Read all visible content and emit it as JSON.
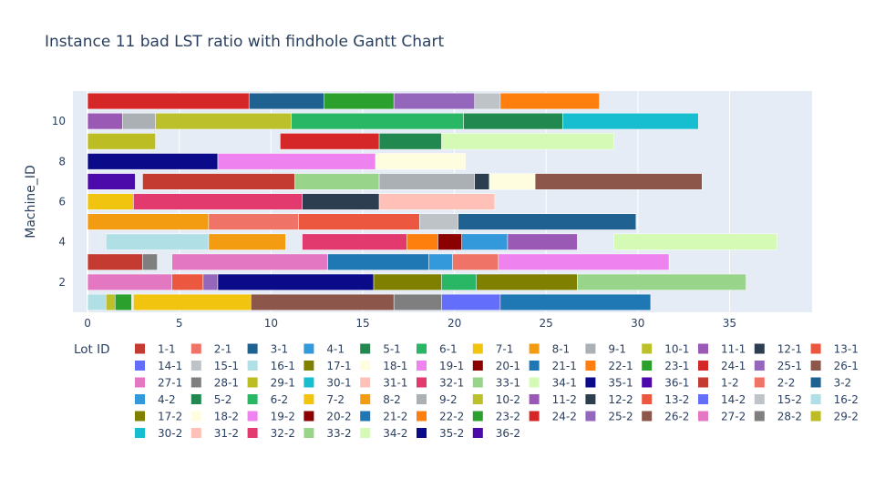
{
  "chart_data": {
    "type": "bar",
    "orientation": "horizontal",
    "title": "Instance 11 bad LST ratio with findhole Gantt Chart",
    "xlabel": "",
    "ylabel": "Machine_ID",
    "legend_title": "Lot ID",
    "legend_placement": "bottom",
    "xlim": [
      -0.8,
      39.5
    ],
    "ylim": [
      0.5,
      11.5
    ],
    "x_ticks": [
      0,
      5,
      10,
      15,
      20,
      25,
      30,
      35
    ],
    "y_ticks": [
      2,
      4,
      6,
      8,
      10
    ],
    "grid": true,
    "lots": [
      {
        "id": "1-1",
        "color": "#c43c31"
      },
      {
        "id": "2-1",
        "color": "#ef7366"
      },
      {
        "id": "3-1",
        "color": "#1f6190"
      },
      {
        "id": "4-1",
        "color": "#3399db"
      },
      {
        "id": "5-1",
        "color": "#218850"
      },
      {
        "id": "6-1",
        "color": "#2ab765"
      },
      {
        "id": "7-1",
        "color": "#f1c40f"
      },
      {
        "id": "8-1",
        "color": "#f39c12"
      },
      {
        "id": "9-1",
        "color": "#aab0b4"
      },
      {
        "id": "10-1",
        "color": "#bcc02b"
      },
      {
        "id": "11-1",
        "color": "#9b59b6"
      },
      {
        "id": "12-1",
        "color": "#2c3e50"
      },
      {
        "id": "13-1",
        "color": "#ec573f"
      },
      {
        "id": "14-1",
        "color": "#636efa"
      },
      {
        "id": "15-1",
        "color": "#bdc3c7"
      },
      {
        "id": "16-1",
        "color": "#b0e0e6"
      },
      {
        "id": "17-1",
        "color": "#808000"
      },
      {
        "id": "18-1",
        "color": "#fffde0"
      },
      {
        "id": "19-1",
        "color": "#ee82ee"
      },
      {
        "id": "20-1",
        "color": "#8b0000"
      },
      {
        "id": "21-1",
        "color": "#1f77b4"
      },
      {
        "id": "22-1",
        "color": "#ff7f0e"
      },
      {
        "id": "23-1",
        "color": "#2ca02c"
      },
      {
        "id": "24-1",
        "color": "#d62728"
      },
      {
        "id": "25-1",
        "color": "#9467bd"
      },
      {
        "id": "26-1",
        "color": "#8c564b"
      },
      {
        "id": "27-1",
        "color": "#e377c2"
      },
      {
        "id": "28-1",
        "color": "#7f7f7f"
      },
      {
        "id": "29-1",
        "color": "#bcbd22"
      },
      {
        "id": "30-1",
        "color": "#17becf"
      },
      {
        "id": "31-1",
        "color": "#ffc0b8"
      },
      {
        "id": "32-1",
        "color": "#e23a6e"
      },
      {
        "id": "33-1",
        "color": "#98d58a"
      },
      {
        "id": "34-1",
        "color": "#d4fab5"
      },
      {
        "id": "35-1",
        "color": "#0b0b8a"
      },
      {
        "id": "36-1",
        "color": "#4b0aa9"
      },
      {
        "id": "1-2",
        "color": "#c43c31"
      },
      {
        "id": "2-2",
        "color": "#ef7366"
      },
      {
        "id": "3-2",
        "color": "#1f6190"
      },
      {
        "id": "4-2",
        "color": "#3399db"
      },
      {
        "id": "5-2",
        "color": "#218850"
      },
      {
        "id": "6-2",
        "color": "#2ab765"
      },
      {
        "id": "7-2",
        "color": "#f1c40f"
      },
      {
        "id": "8-2",
        "color": "#f39c12"
      },
      {
        "id": "9-2",
        "color": "#aab0b4"
      },
      {
        "id": "10-2",
        "color": "#bcc02b"
      },
      {
        "id": "11-2",
        "color": "#9b59b6"
      },
      {
        "id": "12-2",
        "color": "#2c3e50"
      },
      {
        "id": "13-2",
        "color": "#ec573f"
      },
      {
        "id": "14-2",
        "color": "#636efa"
      },
      {
        "id": "15-2",
        "color": "#bdc3c7"
      },
      {
        "id": "16-2",
        "color": "#b0e0e6"
      },
      {
        "id": "17-2",
        "color": "#808000"
      },
      {
        "id": "18-2",
        "color": "#fffde0"
      },
      {
        "id": "19-2",
        "color": "#ee82ee"
      },
      {
        "id": "20-2",
        "color": "#8b0000"
      },
      {
        "id": "21-2",
        "color": "#1f77b4"
      },
      {
        "id": "22-2",
        "color": "#ff7f0e"
      },
      {
        "id": "23-2",
        "color": "#2ca02c"
      },
      {
        "id": "24-2",
        "color": "#d62728"
      },
      {
        "id": "25-2",
        "color": "#9467bd"
      },
      {
        "id": "26-2",
        "color": "#8c564b"
      },
      {
        "id": "27-2",
        "color": "#e377c2"
      },
      {
        "id": "28-2",
        "color": "#7f7f7f"
      },
      {
        "id": "29-2",
        "color": "#bcbd22"
      },
      {
        "id": "30-2",
        "color": "#17becf"
      },
      {
        "id": "31-2",
        "color": "#ffc0b8"
      },
      {
        "id": "32-2",
        "color": "#e23a6e"
      },
      {
        "id": "33-2",
        "color": "#98d58a"
      },
      {
        "id": "34-2",
        "color": "#d4fab5"
      },
      {
        "id": "35-2",
        "color": "#0b0b8a"
      },
      {
        "id": "36-2",
        "color": "#4b0aa9"
      }
    ],
    "tasks": [
      {
        "machine": 11,
        "lot": "24-2",
        "start": 0,
        "end": 8.8
      },
      {
        "machine": 11,
        "lot": "3-1",
        "start": 8.8,
        "end": 12.9
      },
      {
        "machine": 11,
        "lot": "23-2",
        "start": 12.9,
        "end": 16.7
      },
      {
        "machine": 11,
        "lot": "25-1",
        "start": 16.7,
        "end": 21.1
      },
      {
        "machine": 11,
        "lot": "15-2",
        "start": 21.1,
        "end": 22.5
      },
      {
        "machine": 11,
        "lot": "22-2",
        "start": 22.5,
        "end": 27.9
      },
      {
        "machine": 10,
        "lot": "11-2",
        "start": 0,
        "end": 1.9
      },
      {
        "machine": 10,
        "lot": "9-2",
        "start": 1.9,
        "end": 3.7
      },
      {
        "machine": 10,
        "lot": "10-1",
        "start": 3.7,
        "end": 11.1
      },
      {
        "machine": 10,
        "lot": "6-1",
        "start": 11.1,
        "end": 20.5
      },
      {
        "machine": 10,
        "lot": "5-2",
        "start": 20.5,
        "end": 25.9
      },
      {
        "machine": 10,
        "lot": "30-1",
        "start": 25.9,
        "end": 33.3
      },
      {
        "machine": 9,
        "lot": "29-1",
        "start": 0,
        "end": 3.7
      },
      {
        "machine": 9,
        "lot": "24-1",
        "start": 10.5,
        "end": 15.9
      },
      {
        "machine": 9,
        "lot": "5-1",
        "start": 15.9,
        "end": 19.3
      },
      {
        "machine": 9,
        "lot": "34-1",
        "start": 19.3,
        "end": 28.7
      },
      {
        "machine": 8,
        "lot": "35-1",
        "start": 0,
        "end": 7.1
      },
      {
        "machine": 8,
        "lot": "19-2",
        "start": 7.1,
        "end": 15.7
      },
      {
        "machine": 8,
        "lot": "18-1",
        "start": 15.7,
        "end": 20.6
      },
      {
        "machine": 7,
        "lot": "36-1",
        "start": 0,
        "end": 2.6
      },
      {
        "machine": 7,
        "lot": "1-2",
        "start": 3.0,
        "end": 11.3
      },
      {
        "machine": 7,
        "lot": "33-1",
        "start": 11.3,
        "end": 15.9
      },
      {
        "machine": 7,
        "lot": "9-1",
        "start": 15.9,
        "end": 21.1
      },
      {
        "machine": 7,
        "lot": "12-1",
        "start": 21.1,
        "end": 21.9
      },
      {
        "machine": 7,
        "lot": "18-2",
        "start": 21.9,
        "end": 24.4
      },
      {
        "machine": 7,
        "lot": "26-2",
        "start": 24.4,
        "end": 33.5
      },
      {
        "machine": 6,
        "lot": "7-1",
        "start": 0,
        "end": 2.5
      },
      {
        "machine": 6,
        "lot": "32-1",
        "start": 2.5,
        "end": 11.7
      },
      {
        "machine": 6,
        "lot": "12-2",
        "start": 11.7,
        "end": 15.9
      },
      {
        "machine": 6,
        "lot": "31-1",
        "start": 15.9,
        "end": 22.2
      },
      {
        "machine": 5,
        "lot": "8-1",
        "start": 0,
        "end": 6.6
      },
      {
        "machine": 5,
        "lot": "2-1",
        "start": 6.6,
        "end": 11.5
      },
      {
        "machine": 5,
        "lot": "13-1",
        "start": 11.5,
        "end": 18.1
      },
      {
        "machine": 5,
        "lot": "15-1",
        "start": 18.1,
        "end": 20.2
      },
      {
        "machine": 5,
        "lot": "3-2",
        "start": 20.2,
        "end": 29.9
      },
      {
        "machine": 4,
        "lot": "16-2",
        "start": 1.0,
        "end": 6.6
      },
      {
        "machine": 4,
        "lot": "8-2",
        "start": 6.6,
        "end": 10.8
      },
      {
        "machine": 4,
        "lot": "32-2",
        "start": 11.7,
        "end": 17.4
      },
      {
        "machine": 4,
        "lot": "22-1",
        "start": 17.4,
        "end": 19.1
      },
      {
        "machine": 4,
        "lot": "20-2",
        "start": 19.1,
        "end": 20.4
      },
      {
        "machine": 4,
        "lot": "4-1",
        "start": 20.4,
        "end": 22.9
      },
      {
        "machine": 4,
        "lot": "11-1",
        "start": 22.9,
        "end": 26.7
      },
      {
        "machine": 4,
        "lot": "34-2",
        "start": 28.7,
        "end": 37.6
      },
      {
        "machine": 3,
        "lot": "1-1",
        "start": 0,
        "end": 3.0
      },
      {
        "machine": 3,
        "lot": "28-1",
        "start": 3.0,
        "end": 3.8
      },
      {
        "machine": 3,
        "lot": "27-2",
        "start": 4.6,
        "end": 13.1
      },
      {
        "machine": 3,
        "lot": "21-2",
        "start": 13.1,
        "end": 18.6
      },
      {
        "machine": 3,
        "lot": "4-2",
        "start": 18.6,
        "end": 19.9
      },
      {
        "machine": 3,
        "lot": "2-2",
        "start": 19.9,
        "end": 22.4
      },
      {
        "machine": 3,
        "lot": "19-1",
        "start": 22.4,
        "end": 31.7
      },
      {
        "machine": 2,
        "lot": "27-1",
        "start": 0,
        "end": 4.6
      },
      {
        "machine": 2,
        "lot": "13-2",
        "start": 4.6,
        "end": 6.3
      },
      {
        "machine": 2,
        "lot": "25-2",
        "start": 6.3,
        "end": 7.1
      },
      {
        "machine": 2,
        "lot": "35-2",
        "start": 7.1,
        "end": 15.6
      },
      {
        "machine": 2,
        "lot": "17-1",
        "start": 15.6,
        "end": 19.3
      },
      {
        "machine": 2,
        "lot": "6-2",
        "start": 19.3,
        "end": 21.2
      },
      {
        "machine": 2,
        "lot": "17-2",
        "start": 21.2,
        "end": 26.7
      },
      {
        "machine": 2,
        "lot": "33-2",
        "start": 26.7,
        "end": 35.9
      },
      {
        "machine": 1,
        "lot": "16-1",
        "start": 0,
        "end": 1.0
      },
      {
        "machine": 1,
        "lot": "10-2",
        "start": 1.0,
        "end": 1.5
      },
      {
        "machine": 1,
        "lot": "23-1",
        "start": 1.5,
        "end": 2.4
      },
      {
        "machine": 1,
        "lot": "7-2",
        "start": 2.5,
        "end": 8.9
      },
      {
        "machine": 1,
        "lot": "26-1",
        "start": 8.9,
        "end": 16.7
      },
      {
        "machine": 1,
        "lot": "28-2",
        "start": 16.7,
        "end": 19.3
      },
      {
        "machine": 1,
        "lot": "14-2",
        "start": 19.3,
        "end": 22.5
      },
      {
        "machine": 1,
        "lot": "21-1",
        "start": 22.5,
        "end": 30.7
      }
    ]
  }
}
